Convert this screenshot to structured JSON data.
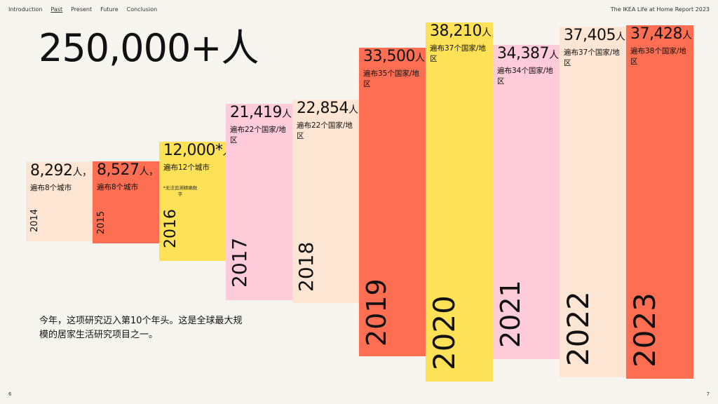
{
  "nav": {
    "items": [
      "Introduction",
      "Past",
      "Present",
      "Future",
      "Conclusion"
    ],
    "active": "Past"
  },
  "report_title": "The IKEA Life at Home Report 2023",
  "page_left": "6",
  "page_right": "7",
  "headline": "250,000+人",
  "caption": "今年，这项研究迈入第10个年头。这是全球最大规模的居家生活研究项目之一。",
  "colors": {
    "background": "#f5f4ef",
    "peach": "#fce6d3",
    "red": "#fd6e52",
    "yellow": "#fde257",
    "pink": "#fecbdb"
  },
  "years": [
    {
      "year": "2014",
      "count": "8,292",
      "unit": "人，",
      "desc": "遍布8个城市",
      "note": "",
      "color": "peach"
    },
    {
      "year": "2015",
      "count": "8,527",
      "unit": "人，",
      "desc": "遍布8个城市",
      "note": "",
      "color": "red"
    },
    {
      "year": "2016",
      "count": "12,000*",
      "unit": "人，",
      "desc": "遍布12个城市",
      "note": "*无法追溯精确数字",
      "color": "yellow"
    },
    {
      "year": "2017",
      "count": "21,419",
      "unit": "人，",
      "desc": "遍布22个国家/地区",
      "note": "",
      "color": "pink"
    },
    {
      "year": "2018",
      "count": "22,854",
      "unit": "人，",
      "desc": "遍布22个国家/地区",
      "note": "",
      "color": "peach"
    },
    {
      "year": "2019",
      "count": "33,500",
      "unit": "人，",
      "desc": "遍布35个国家/地区",
      "note": "",
      "color": "red"
    },
    {
      "year": "2020",
      "count": "38,210",
      "unit": "人，",
      "desc": "遍布37个国家/地区",
      "note": "",
      "color": "yellow"
    },
    {
      "year": "2021",
      "count": "34,387",
      "unit": "人，",
      "desc": "遍布34个国家/地区",
      "note": "",
      "color": "pink"
    },
    {
      "year": "2022",
      "count": "37,405",
      "unit": "人，",
      "desc": "遍布37个国家/地区",
      "note": "",
      "color": "peach"
    },
    {
      "year": "2023",
      "count": "37,428",
      "unit": "人，",
      "desc": "遍布38个国家/地区",
      "note": "",
      "color": "red"
    }
  ]
}
